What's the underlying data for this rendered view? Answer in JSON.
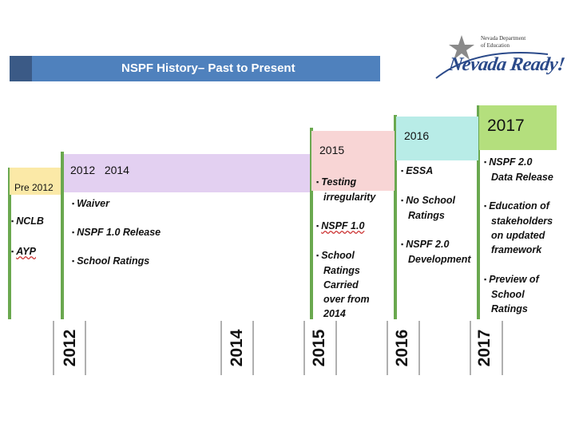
{
  "slide": {
    "title": "NSPF History– Past to Present"
  },
  "logo": {
    "dept_line1": "Nevada Department",
    "dept_line2": "of Education",
    "wordmark": "Nevada Ready!",
    "icon": "star-icon"
  },
  "columns": {
    "pre2012": {
      "header": "Pre 2012",
      "bullets": [
        "NCLB",
        "AYP"
      ],
      "color": "#fbe9a7"
    },
    "y2012": {
      "header": "2012   2014",
      "bullets": [
        "Waiver",
        "NSPF 1.0 Release",
        "School Ratings"
      ],
      "color": "#e3d0f1"
    },
    "y2015": {
      "header": "2015",
      "bullets": [
        [
          "Testing",
          "irregularity"
        ],
        [
          "NSPF 1.0"
        ],
        [
          "School",
          "Ratings",
          "Carried",
          "over from",
          "2014"
        ]
      ],
      "color": "#f8d5d5"
    },
    "y2016": {
      "header": "2016",
      "bullets": [
        [
          "ESSA"
        ],
        [
          "No School",
          "Ratings"
        ],
        [
          "NSPF 2.0",
          "Development"
        ]
      ],
      "color": "#b8ece7"
    },
    "y2017": {
      "header": "2017",
      "bullets": [
        [
          "NSPF 2.0",
          "Data Release"
        ],
        [
          "Education of",
          "stakeholders",
          "on updated",
          "framework"
        ],
        [
          "Preview of",
          "School",
          "Ratings"
        ]
      ],
      "color": "#b4df7d"
    }
  },
  "year_labels": [
    "2012",
    "2014",
    "2015",
    "2016",
    "2017"
  ],
  "bullet_marker": "▪"
}
